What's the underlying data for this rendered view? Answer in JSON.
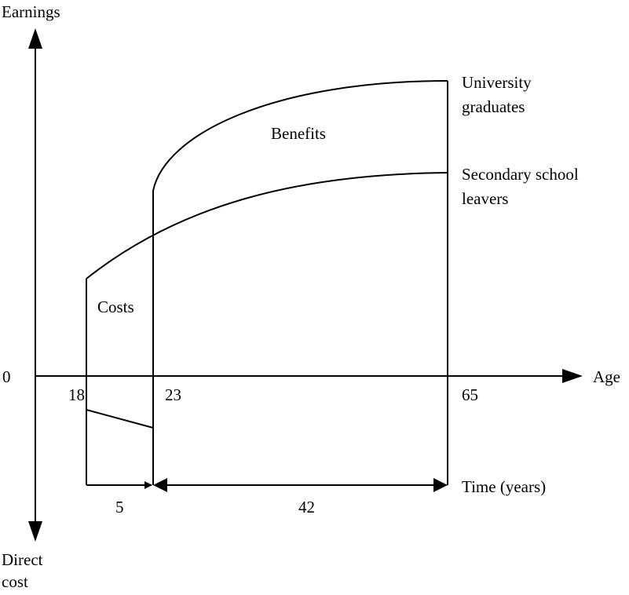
{
  "axes": {
    "y_top_label": "Earnings",
    "y_bottom_label_line1": "Direct",
    "y_bottom_label_line2": "cost",
    "x_label": "Age",
    "origin_label": "0"
  },
  "ages": {
    "start": "18",
    "graduation": "23",
    "retirement": "65"
  },
  "regions": {
    "costs": "Costs",
    "benefits": "Benefits"
  },
  "curves": {
    "university_line1": "University",
    "university_line2": "graduates",
    "secondary_line1": "Secondary school",
    "secondary_line2": "leavers"
  },
  "time": {
    "label": "Time (years)",
    "study_years": "5",
    "working_years": "42"
  },
  "colors": {
    "ink": "#000000",
    "background": "#ffffff"
  }
}
